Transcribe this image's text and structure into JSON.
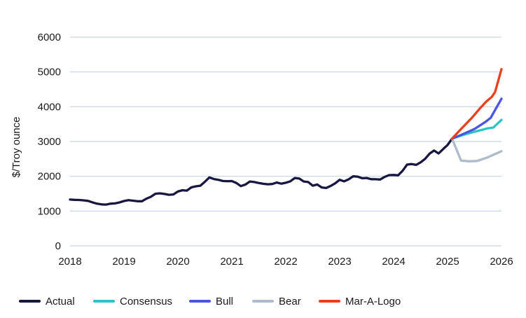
{
  "page": {
    "background_color": "#ffffff",
    "text_color": "#1a1a1a"
  },
  "chart_data": {
    "type": "line",
    "title": "",
    "xlabel": "",
    "ylabel": "$/Troy ounce",
    "xlim": [
      2018,
      2026
    ],
    "ylim": [
      0,
      6000
    ],
    "xticks": [
      "2018",
      "2019",
      "2020",
      "2021",
      "2022",
      "2023",
      "2024",
      "2025",
      "2026"
    ],
    "xtick_values": [
      2018,
      2019,
      2020,
      2021,
      2022,
      2023,
      2024,
      2025,
      2026
    ],
    "yticks": [
      "0",
      "1000",
      "2000",
      "3000",
      "4000",
      "5000",
      "6000"
    ],
    "ytick_values": [
      0,
      1000,
      2000,
      3000,
      4000,
      5000,
      6000
    ],
    "grid": "horizontal",
    "gridline_color": "#c6d4e1",
    "legend_position": "bottom",
    "series": [
      {
        "name": "Actual",
        "color": "#171740",
        "x_start": 2018,
        "x_step": 0.0833333,
        "values": [
          1330,
          1322,
          1318,
          1308,
          1292,
          1250,
          1212,
          1192,
          1185,
          1212,
          1220,
          1248,
          1288,
          1315,
          1298,
          1282,
          1282,
          1358,
          1412,
          1498,
          1510,
          1492,
          1468,
          1478,
          1562,
          1598,
          1588,
          1682,
          1712,
          1730,
          1842,
          1968,
          1920,
          1898,
          1864,
          1858,
          1862,
          1808,
          1718,
          1760,
          1850,
          1835,
          1806,
          1784,
          1770,
          1778,
          1820,
          1788,
          1815,
          1855,
          1948,
          1935,
          1850,
          1835,
          1730,
          1764,
          1680,
          1664,
          1724,
          1798,
          1898,
          1855,
          1912,
          2000,
          1990,
          1942,
          1950,
          1916,
          1914,
          1906,
          1984,
          2034,
          2038,
          2028,
          2158,
          2335,
          2352,
          2328,
          2400,
          2500,
          2650,
          2740,
          2655,
          2780,
          2900,
          3080
        ]
      },
      {
        "name": "Consensus",
        "color": "#2bc5c8",
        "x": [
          2025.083,
          2025.25,
          2025.5,
          2025.75,
          2025.85,
          2026
        ],
        "values": [
          3080,
          3170,
          3280,
          3380,
          3400,
          3620
        ]
      },
      {
        "name": "Bull",
        "color": "#4a55e0",
        "x": [
          2025.083,
          2025.25,
          2025.5,
          2025.7,
          2025.8,
          2026
        ],
        "values": [
          3080,
          3190,
          3360,
          3560,
          3680,
          4230
        ]
      },
      {
        "name": "Bear",
        "color": "#aebbca",
        "x": [
          2025.083,
          2025.25,
          2025.4,
          2025.55,
          2025.75,
          2026
        ],
        "values": [
          3080,
          2450,
          2430,
          2440,
          2550,
          2720
        ]
      },
      {
        "name": "Mar-A-Logo",
        "color": "#e8401d",
        "x": [
          2025.083,
          2025.25,
          2025.45,
          2025.6,
          2025.72,
          2025.82,
          2025.88,
          2026
        ],
        "values": [
          3080,
          3360,
          3680,
          3950,
          4150,
          4280,
          4420,
          5080
        ]
      }
    ]
  }
}
